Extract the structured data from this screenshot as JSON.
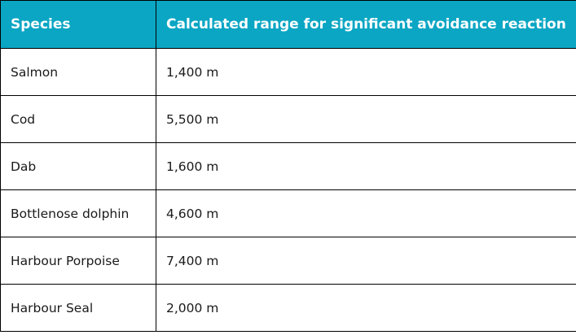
{
  "table": {
    "header_color": "#0ba6c4",
    "columns": [
      "Species",
      "Calculated range for significant avoidance reaction"
    ],
    "rows": [
      {
        "species": "Salmon",
        "range": "1,400 m"
      },
      {
        "species": "Cod",
        "range": "5,500 m"
      },
      {
        "species": "Dab",
        "range": "1,600 m"
      },
      {
        "species": "Bottlenose dolphin",
        "range": "4,600 m"
      },
      {
        "species": "Harbour Porpoise",
        "range": "7,400 m"
      },
      {
        "species": "Harbour Seal",
        "range": "2,000 m"
      }
    ]
  }
}
